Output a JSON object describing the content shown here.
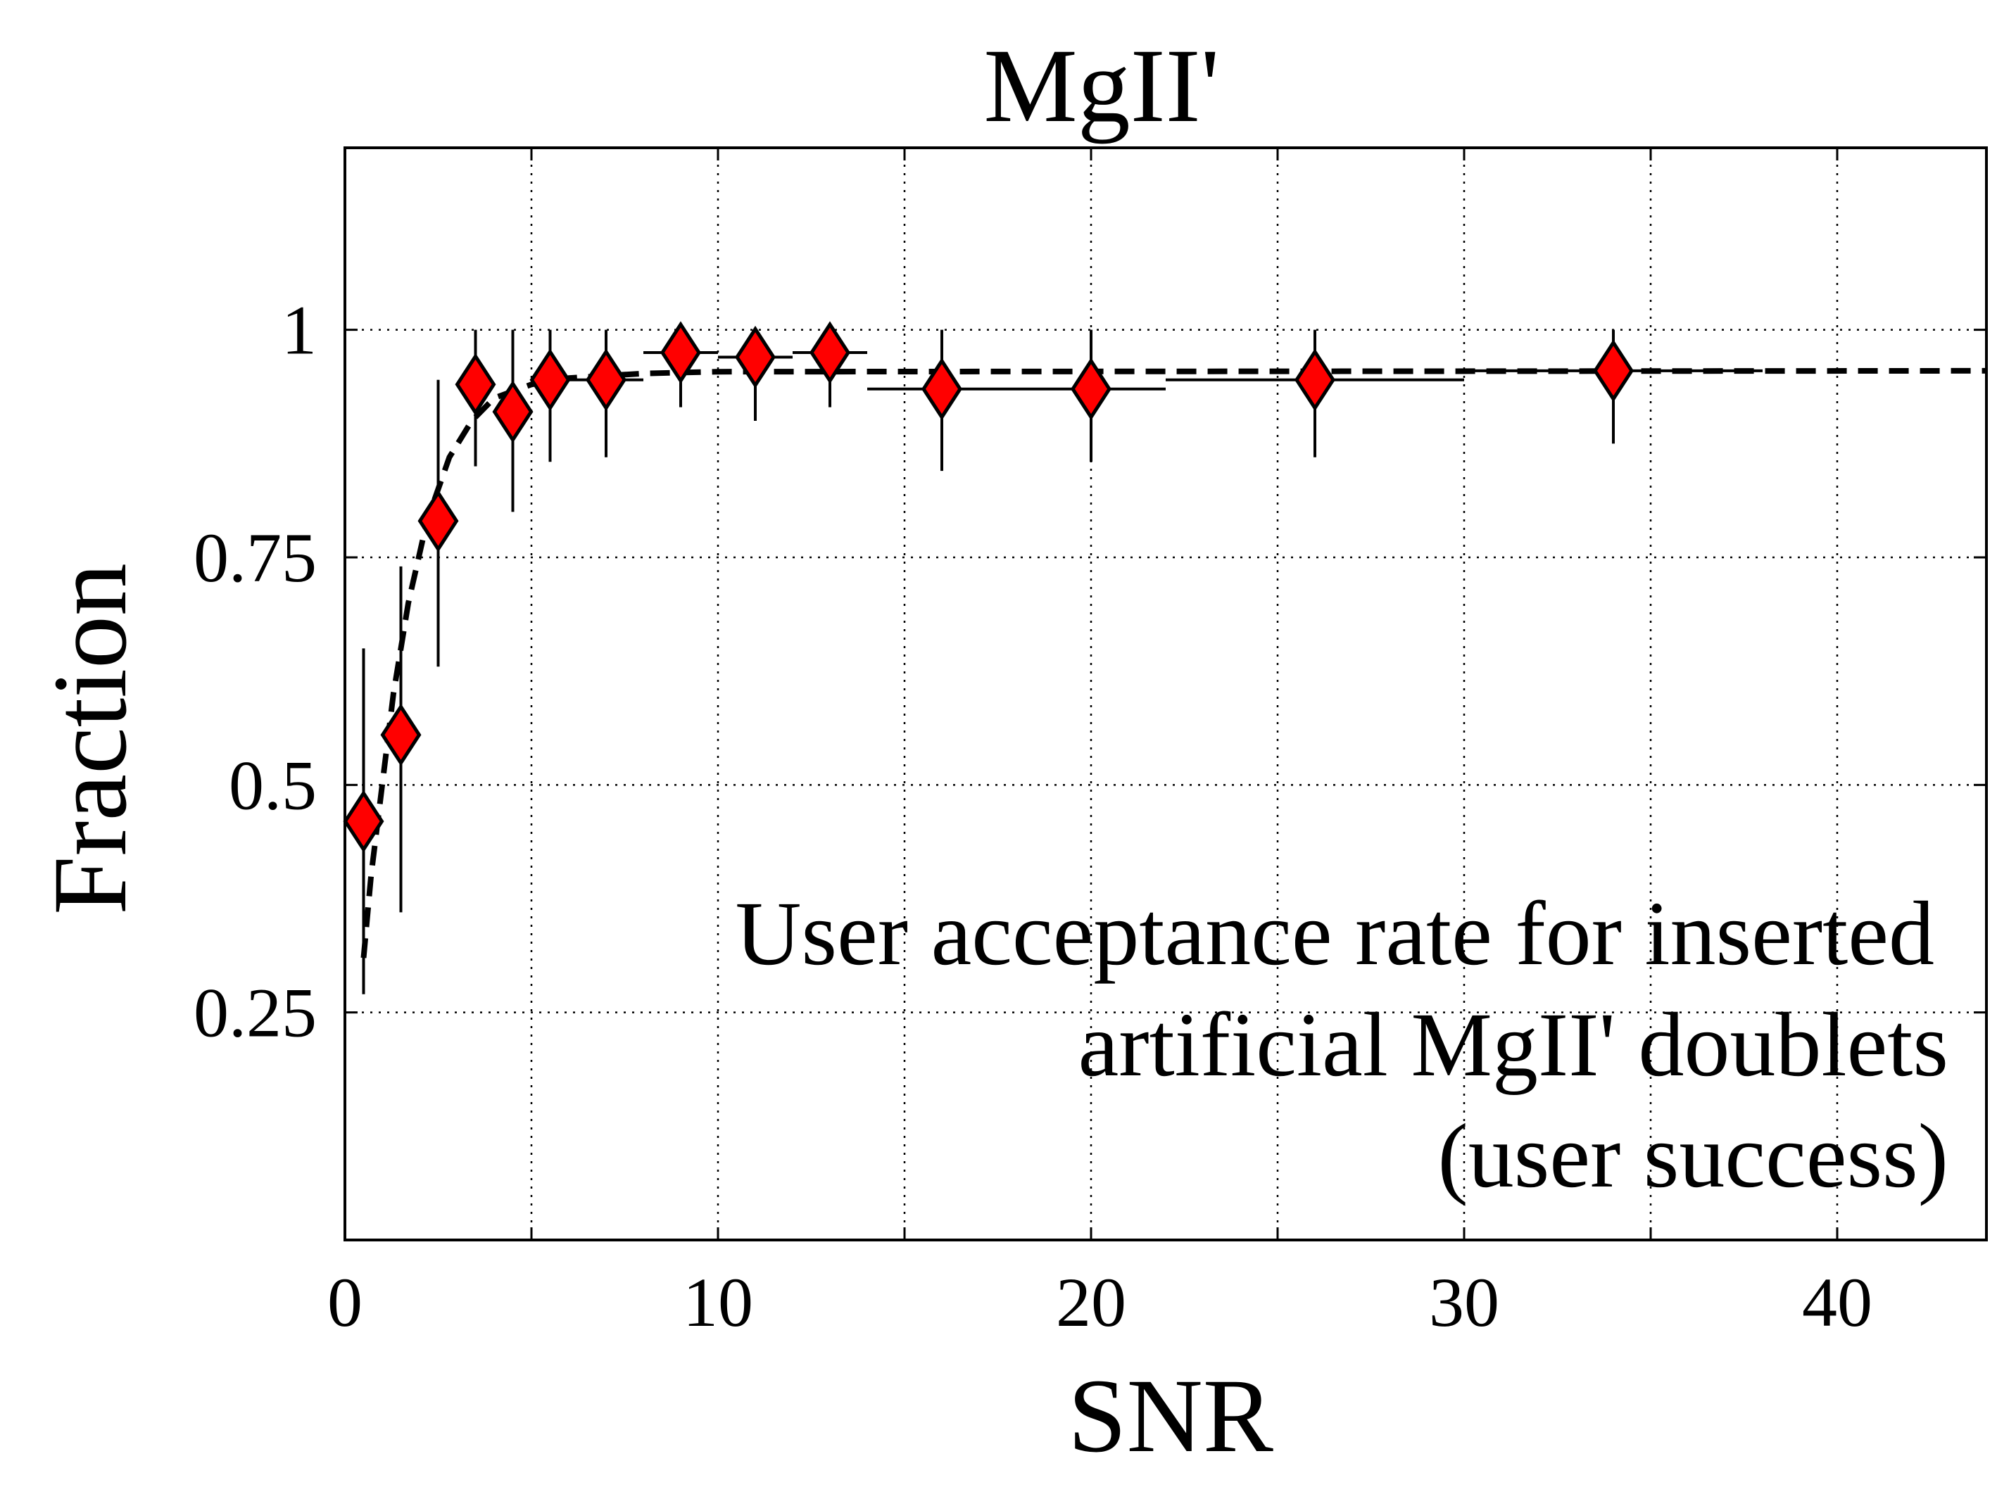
{
  "chart_data": {
    "type": "scatter",
    "title": "MgII'",
    "xlabel": "SNR",
    "ylabel": "Fraction",
    "xlim": [
      0,
      44
    ],
    "ylim": [
      0,
      1.2
    ],
    "xticks": [
      0,
      10,
      20,
      30,
      40
    ],
    "xtick_labels": [
      "0",
      "10",
      "20",
      "30",
      "40"
    ],
    "yticks": [
      0.25,
      0.5,
      0.75,
      1
    ],
    "ytick_labels": [
      "0.25",
      "0.5",
      "0.75",
      "1"
    ],
    "grid": true,
    "annotation": [
      "User acceptance rate for inserted",
      "artificial MgII' doublets",
      "(user success)"
    ],
    "colors": {
      "marker_fill": "#ff0000",
      "marker_edge": "#000000",
      "line": "#000000"
    },
    "series": [
      {
        "marker": "diamond",
        "points": [
          {
            "x": 0.5,
            "y": 0.46,
            "ylo": 0.27,
            "yhi": 0.65,
            "xlo": 0,
            "xhi": 1
          },
          {
            "x": 1.5,
            "y": 0.555,
            "ylo": 0.36,
            "yhi": 0.74,
            "xlo": 1,
            "xhi": 2
          },
          {
            "x": 2.5,
            "y": 0.79,
            "ylo": 0.63,
            "yhi": 0.945,
            "xlo": 2,
            "xhi": 3
          },
          {
            "x": 3.5,
            "y": 0.94,
            "ylo": 0.85,
            "yhi": 1.0,
            "xlo": 3,
            "xhi": 4
          },
          {
            "x": 4.5,
            "y": 0.91,
            "ylo": 0.8,
            "yhi": 1.0,
            "xlo": 4,
            "xhi": 5
          },
          {
            "x": 5.5,
            "y": 0.945,
            "ylo": 0.855,
            "yhi": 1.0,
            "xlo": 5,
            "xhi": 6
          },
          {
            "x": 7,
            "y": 0.945,
            "ylo": 0.86,
            "yhi": 1.0,
            "xlo": 6,
            "xhi": 8
          },
          {
            "x": 9,
            "y": 0.975,
            "ylo": 0.915,
            "yhi": 1.0,
            "xlo": 8,
            "xhi": 10
          },
          {
            "x": 11,
            "y": 0.97,
            "ylo": 0.9,
            "yhi": 1.0,
            "xlo": 10,
            "xhi": 12
          },
          {
            "x": 13,
            "y": 0.975,
            "ylo": 0.915,
            "yhi": 1.0,
            "xlo": 12,
            "xhi": 14
          },
          {
            "x": 16,
            "y": 0.935,
            "ylo": 0.845,
            "yhi": 1.0,
            "xlo": 14,
            "xhi": 18
          },
          {
            "x": 20,
            "y": 0.935,
            "ylo": 0.855,
            "yhi": 1.0,
            "xlo": 18,
            "xhi": 22
          },
          {
            "x": 26,
            "y": 0.945,
            "ylo": 0.86,
            "yhi": 1.0,
            "xlo": 22,
            "xhi": 30
          },
          {
            "x": 34,
            "y": 0.955,
            "ylo": 0.875,
            "yhi": 1.0,
            "xlo": 30,
            "xhi": 38
          }
        ]
      }
    ],
    "fit_curve": {
      "style": "dashed",
      "points": [
        {
          "x": 0.5,
          "y": 0.31
        },
        {
          "x": 0.7,
          "y": 0.4
        },
        {
          "x": 1.0,
          "y": 0.5
        },
        {
          "x": 1.3,
          "y": 0.6
        },
        {
          "x": 1.7,
          "y": 0.7
        },
        {
          "x": 2.2,
          "y": 0.79
        },
        {
          "x": 2.8,
          "y": 0.86
        },
        {
          "x": 3.4,
          "y": 0.9
        },
        {
          "x": 4.0,
          "y": 0.925
        },
        {
          "x": 5.0,
          "y": 0.94
        },
        {
          "x": 6.0,
          "y": 0.947
        },
        {
          "x": 8.0,
          "y": 0.952
        },
        {
          "x": 10,
          "y": 0.954
        },
        {
          "x": 44,
          "y": 0.955
        }
      ]
    }
  }
}
